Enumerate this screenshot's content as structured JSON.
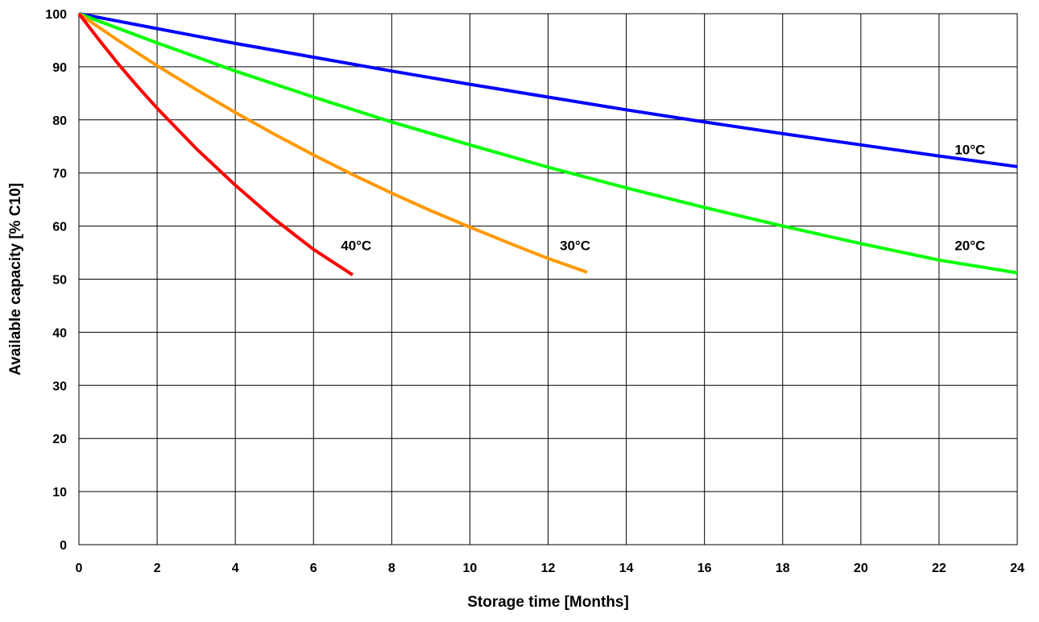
{
  "chart_data": {
    "type": "line",
    "title": "",
    "xlabel": "Storage time [Months]",
    "ylabel": "Available capacity [% C10]",
    "xlim": [
      0,
      24
    ],
    "ylim": [
      0,
      100
    ],
    "xticks": [
      0,
      2,
      4,
      6,
      8,
      10,
      12,
      14,
      16,
      18,
      20,
      22,
      24
    ],
    "yticks": [
      0,
      10,
      20,
      30,
      40,
      50,
      60,
      70,
      80,
      90,
      100
    ],
    "grid": true,
    "legend": "none",
    "series": [
      {
        "name": "10°C",
        "color": "#0000ff",
        "label_at": [
          22.4,
          73.5
        ],
        "points": [
          [
            0,
            100
          ],
          [
            2,
            97.2
          ],
          [
            4,
            94.4
          ],
          [
            6,
            91.8
          ],
          [
            8,
            89.2
          ],
          [
            10,
            86.7
          ],
          [
            12,
            84.3
          ],
          [
            14,
            81.9
          ],
          [
            16,
            79.6
          ],
          [
            18,
            77.4
          ],
          [
            20,
            75.3
          ],
          [
            22,
            73.2
          ],
          [
            24,
            71.2
          ]
        ]
      },
      {
        "name": "20°C",
        "color": "#00ff00",
        "label_at": [
          22.4,
          55.5
        ],
        "points": [
          [
            0,
            100
          ],
          [
            2,
            94.5
          ],
          [
            4,
            89.2
          ],
          [
            6,
            84.3
          ],
          [
            8,
            79.6
          ],
          [
            10,
            75.3
          ],
          [
            12,
            71.1
          ],
          [
            14,
            67.2
          ],
          [
            16,
            63.5
          ],
          [
            18,
            60.0
          ],
          [
            20,
            56.7
          ],
          [
            22,
            53.6
          ],
          [
            24,
            51.2
          ]
        ]
      },
      {
        "name": "30°C",
        "color": "#ff9900",
        "label_at": [
          12.3,
          55.5
        ],
        "points": [
          [
            0,
            100
          ],
          [
            1,
            95.0
          ],
          [
            2,
            90.2
          ],
          [
            3,
            85.7
          ],
          [
            4,
            81.4
          ],
          [
            5,
            77.3
          ],
          [
            6,
            73.4
          ],
          [
            7,
            69.7
          ],
          [
            8,
            66.2
          ],
          [
            9,
            62.9
          ],
          [
            10,
            59.8
          ],
          [
            11,
            56.8
          ],
          [
            12,
            53.9
          ],
          [
            13,
            51.3
          ]
        ]
      },
      {
        "name": "40°C",
        "color": "#ff0000",
        "label_at": [
          6.7,
          55.5
        ],
        "points": [
          [
            0,
            100
          ],
          [
            0.5,
            95.2
          ],
          [
            1,
            90.6
          ],
          [
            1.5,
            86.3
          ],
          [
            2,
            82.2
          ],
          [
            3,
            74.6
          ],
          [
            4,
            67.7
          ],
          [
            5,
            61.3
          ],
          [
            6,
            55.6
          ],
          [
            7,
            50.8
          ]
        ]
      }
    ]
  }
}
